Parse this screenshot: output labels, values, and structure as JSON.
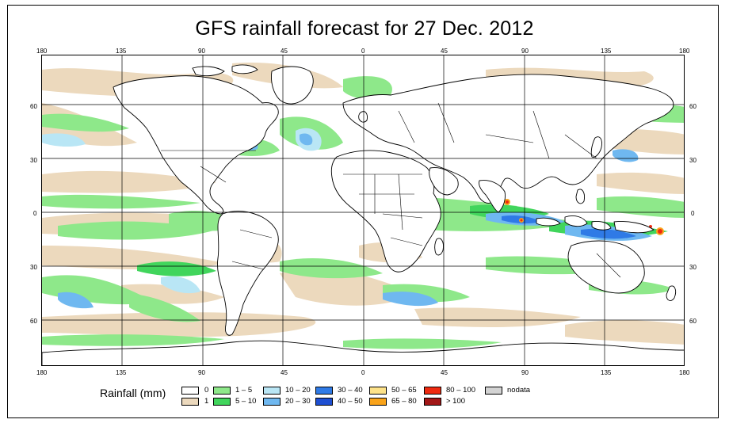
{
  "title": "GFS rainfall forecast for 27 Dec. 2012",
  "axes": {
    "top_lon_labels": [
      "180",
      "135",
      "90",
      "45",
      "0",
      "45",
      "90",
      "135",
      "180"
    ],
    "bottom_lon_labels": [
      "180",
      "135",
      "90",
      "45",
      "0",
      "45",
      "90",
      "135",
      "180"
    ],
    "lat_labels": [
      "60",
      "30",
      "0",
      "30",
      "60"
    ]
  },
  "legend": {
    "title": "Rainfall (mm)",
    "items": [
      {
        "label": "0",
        "color": "#ffffff"
      },
      {
        "label": "1",
        "color": "#ecd9bd"
      },
      {
        "label": "1 – 5",
        "color": "#8ee88a"
      },
      {
        "label": "5 – 10",
        "color": "#41d55c"
      },
      {
        "label": "10 – 20",
        "color": "#b9e6f5"
      },
      {
        "label": "20 – 30",
        "color": "#6fb8f0"
      },
      {
        "label": "30 – 40",
        "color": "#2f7ae6"
      },
      {
        "label": "40 – 50",
        "color": "#1e4fd2"
      },
      {
        "label": "50 – 65",
        "color": "#fde289"
      },
      {
        "label": "65 – 80",
        "color": "#f9a31a"
      },
      {
        "label": "80 – 100",
        "color": "#ee2a10"
      },
      {
        "label": "> 100",
        "color": "#a21717"
      },
      {
        "label": "nodata",
        "color": "#d3d3d3"
      }
    ]
  },
  "colors": {
    "tan": "#ecd9bd",
    "light_green": "#8ee88a",
    "green": "#41d55c",
    "light_blue": "#b9e6f5",
    "mid_blue": "#6fb8f0",
    "blue": "#2f7ae6",
    "deep_blue": "#1e4fd2",
    "orange": "#f9a31a",
    "red": "#ee2a10"
  }
}
